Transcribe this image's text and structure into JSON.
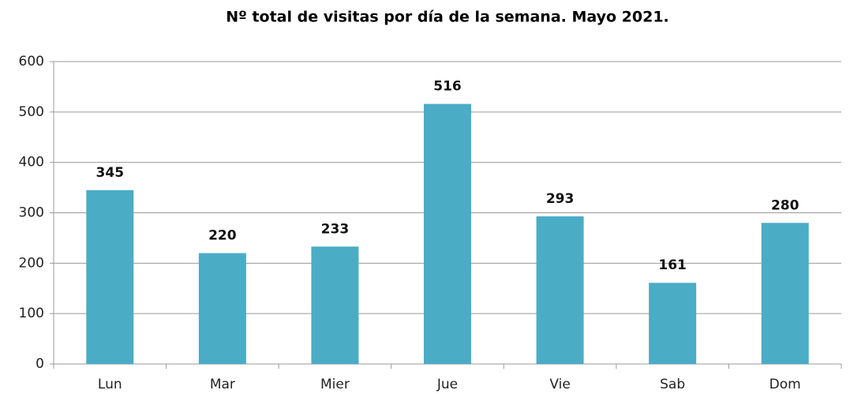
{
  "chart_data": {
    "type": "bar",
    "title": "Nº total de visitas por día de la semana. Mayo 2021.",
    "categories": [
      "Lun",
      "Mar",
      "Mier",
      "Jue",
      "Vie",
      "Sab",
      "Dom"
    ],
    "values": [
      345,
      220,
      233,
      516,
      293,
      161,
      280
    ],
    "color": "#4bacc6",
    "ylim": [
      0,
      600
    ],
    "yticks": [
      0,
      100,
      200,
      300,
      400,
      500,
      600
    ],
    "grid": true
  }
}
